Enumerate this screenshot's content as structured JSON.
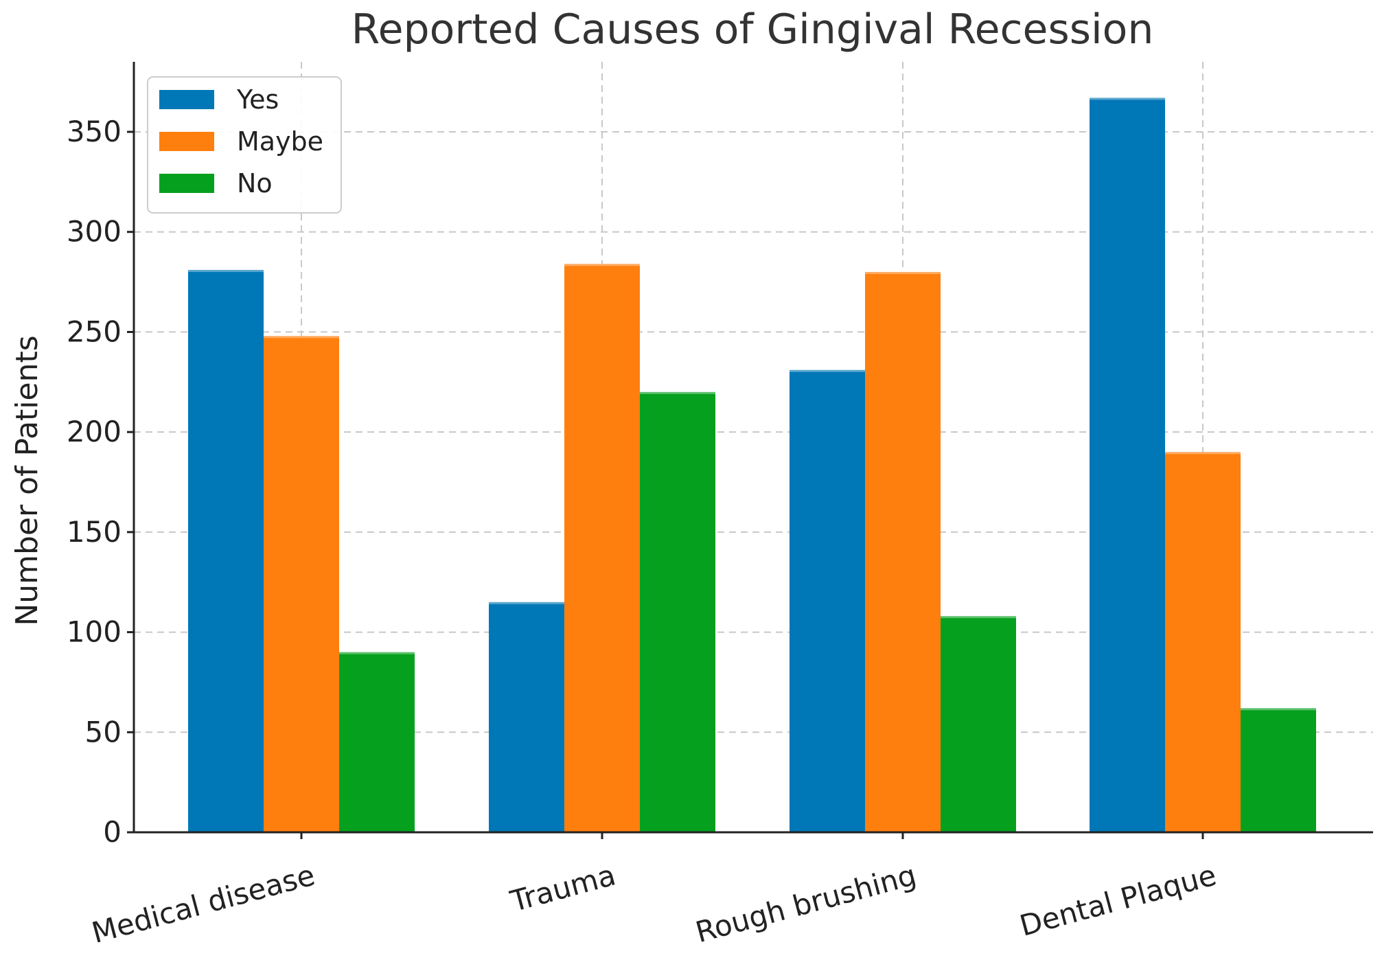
{
  "chart_data": {
    "type": "bar",
    "title": "Reported Causes of Gingival Recession",
    "xlabel": "",
    "ylabel": "Number of Patients",
    "categories": [
      "Medical disease",
      "Trauma",
      "Rough brushing",
      "Dental Plaque"
    ],
    "series": [
      {
        "name": "Yes",
        "color": "#0077b6",
        "values": [
          281,
          115,
          231,
          367
        ]
      },
      {
        "name": "Maybe",
        "color": "#ff7f0e",
        "values": [
          248,
          284,
          280,
          190
        ]
      },
      {
        "name": "No",
        "color": "#05a01e",
        "values": [
          90,
          220,
          108,
          62
        ]
      }
    ],
    "ylim": [
      0,
      385
    ],
    "yticks": [
      0,
      50,
      100,
      150,
      200,
      250,
      300,
      350
    ],
    "grid": true,
    "legend": "top-left"
  }
}
